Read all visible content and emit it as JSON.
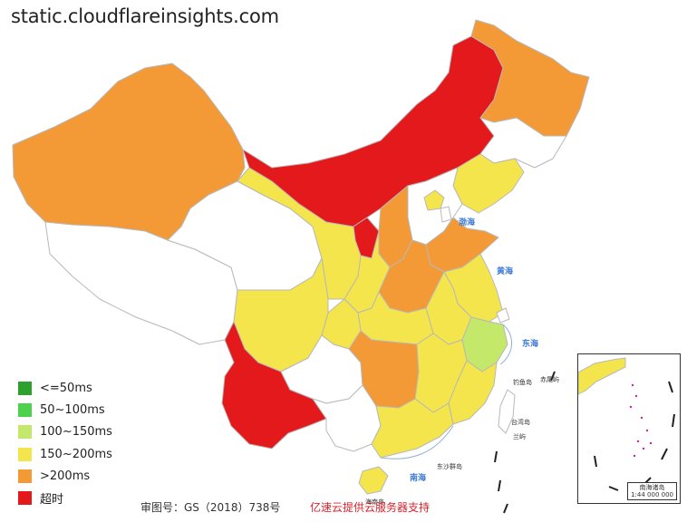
{
  "title": "static.cloudflareinsights.com",
  "legend": [
    {
      "label": "<=50ms",
      "color": "#2ea02e"
    },
    {
      "label": "50~100ms",
      "color": "#4ed14e"
    },
    {
      "label": "100~150ms",
      "color": "#c3e86a"
    },
    {
      "label": "150~200ms",
      "color": "#f4e54c"
    },
    {
      "label": ">200ms",
      "color": "#f39a37"
    },
    {
      "label": "超时",
      "color": "#e3191b"
    }
  ],
  "footer": {
    "approval": "审图号：GS（2018）738号",
    "provider": "亿速云提供云服务器支持"
  },
  "sea_labels": {
    "bohai": "渤海",
    "yellow_sea": "黄海",
    "east_sea": "东海",
    "south_sea": "南海"
  },
  "island_labels": {
    "diaoyu": "钓鱼岛",
    "chiwei": "赤尾屿",
    "taiwan": "台湾岛",
    "lanyu": "兰屿",
    "hainan": "海南岛",
    "dongsha": "东沙群岛"
  },
  "inset": {
    "scale": "南海诸岛\n1:44 000 000"
  },
  "provinces": {
    "xinjiang": ">200ms",
    "tibet": "none",
    "qinghai": "none",
    "gansu": "150~200ms",
    "inner_mongolia": "超时",
    "heilongjiang": ">200ms",
    "jilin": "none",
    "liaoning": "150~200ms",
    "hebei": "none",
    "beijing": "150~200ms",
    "tianjin": "none",
    "shanxi": ">200ms",
    "shandong": ">200ms",
    "ningxia": "超时",
    "shaanxi": "150~200ms",
    "henan": ">200ms",
    "jiangsu": "150~200ms",
    "anhui": "150~200ms",
    "shanghai": "none",
    "zhejiang": "100~150ms",
    "hubei": "150~200ms",
    "sichuan": "150~200ms",
    "chongqing": "150~200ms",
    "yunnan": "超时",
    "guizhou": "none",
    "hunan": ">200ms",
    "jiangxi": "150~200ms",
    "fujian": "150~200ms",
    "guangdong": "150~200ms",
    "guangxi": "none",
    "hainan": "150~200ms",
    "taiwan": "none"
  }
}
